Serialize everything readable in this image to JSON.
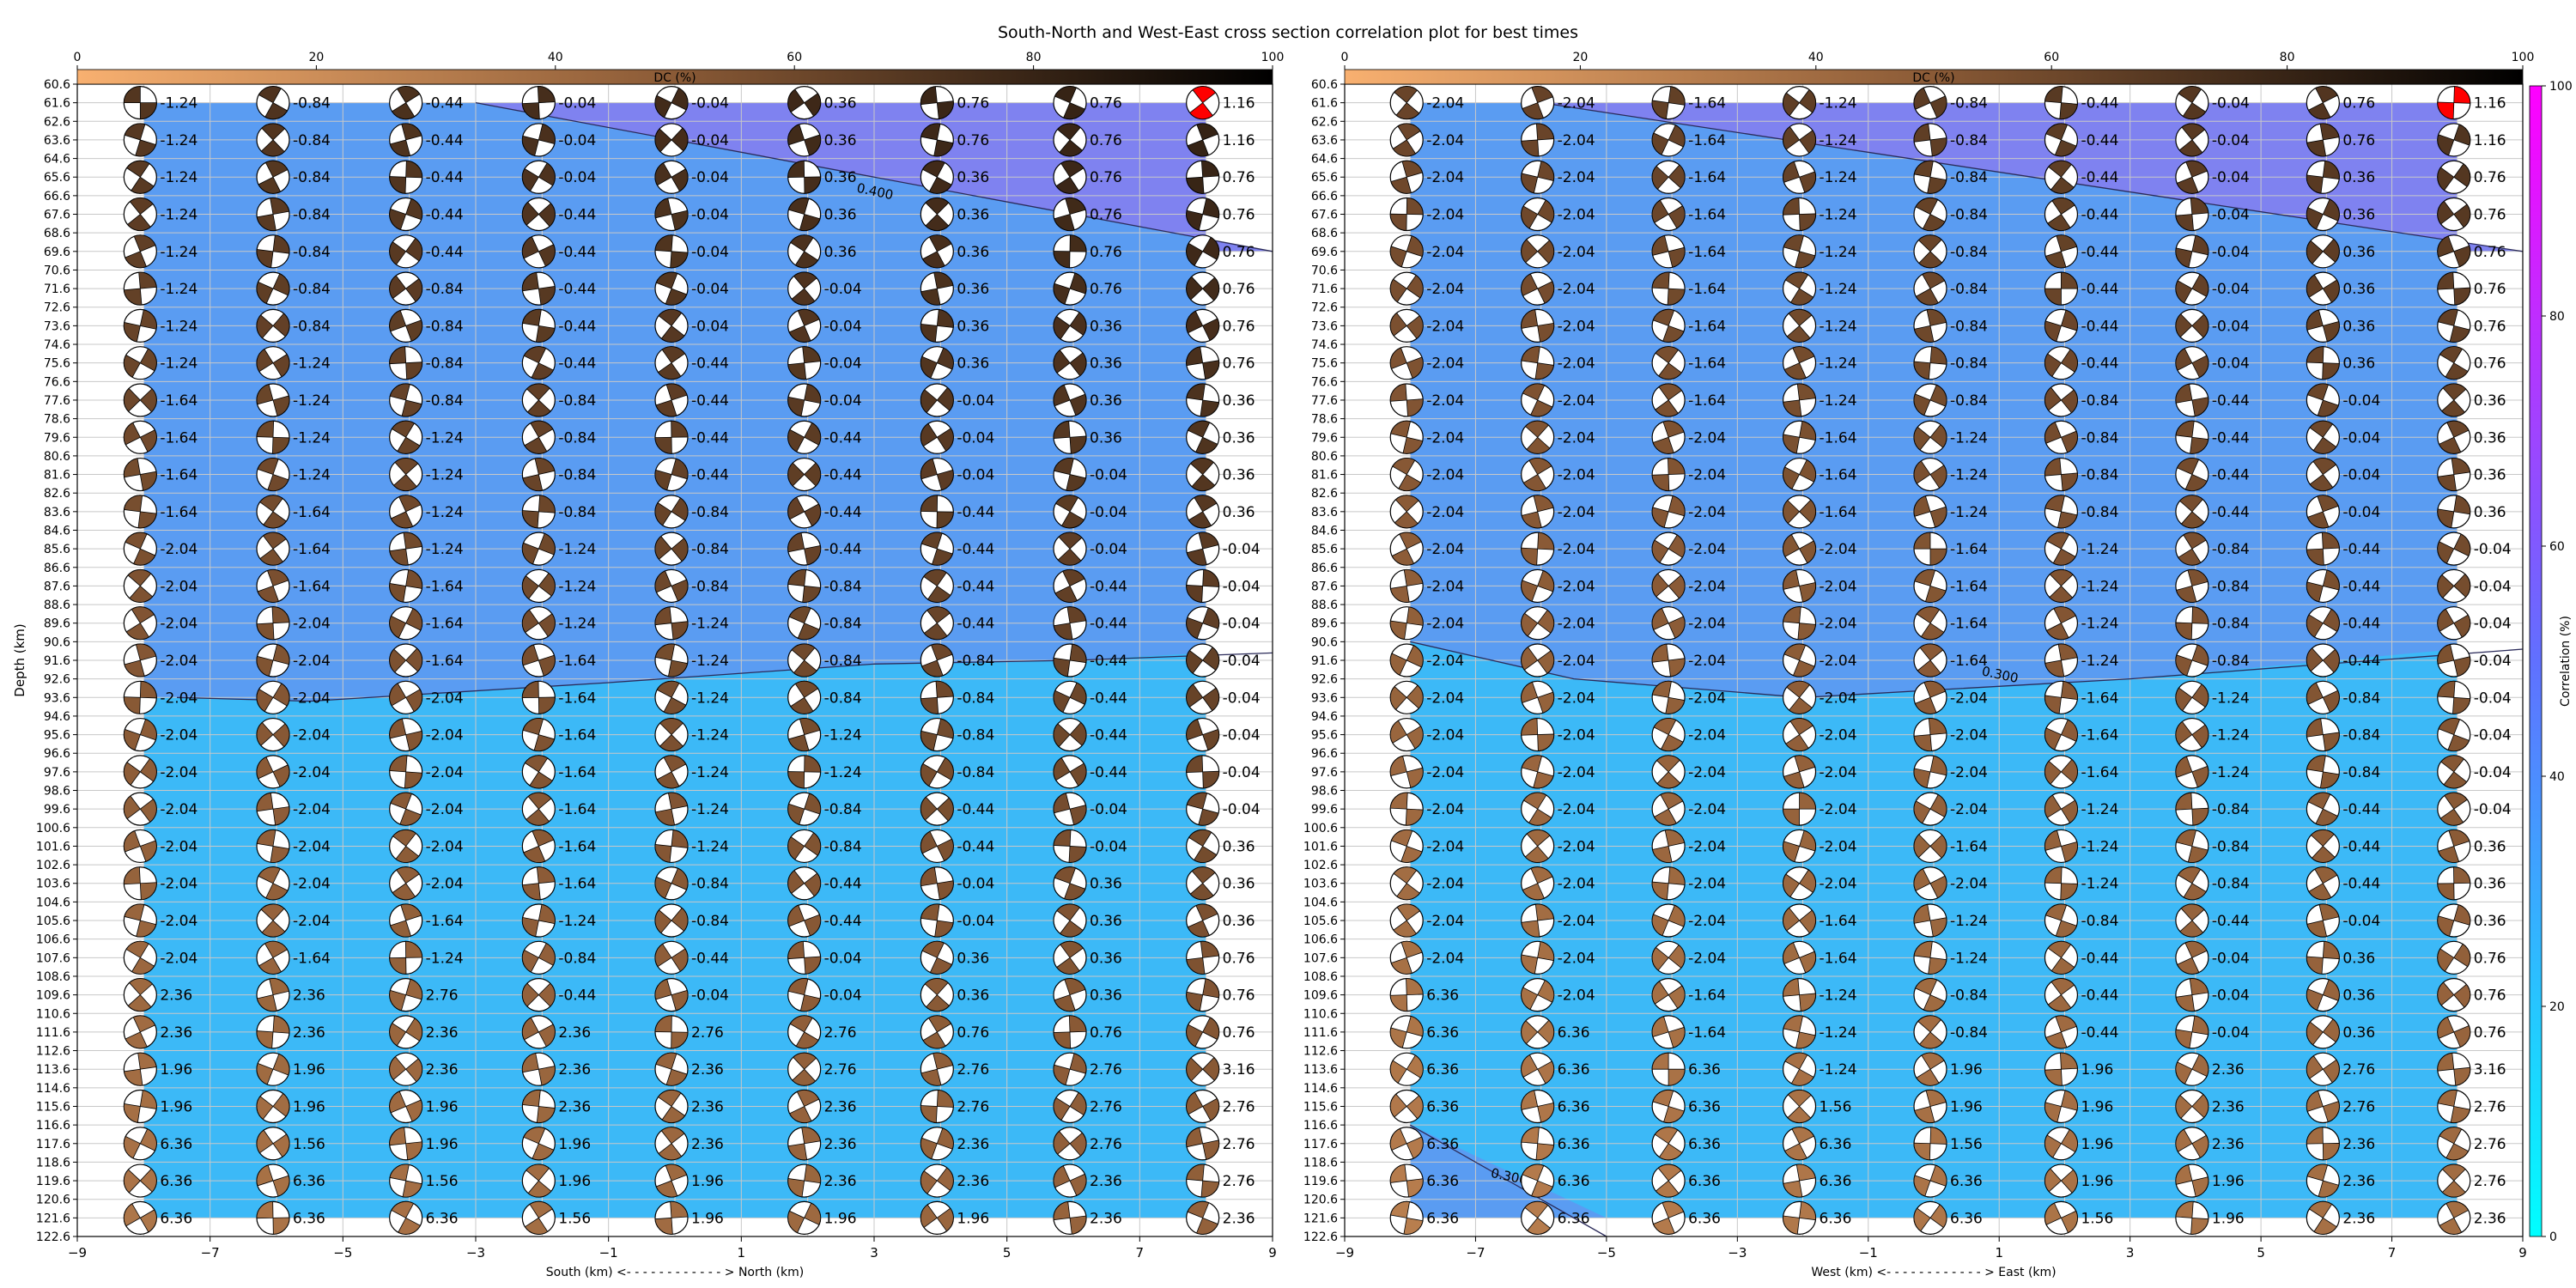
{
  "figure_title": "South-North and West-East cross section correlation plot for best times",
  "chart_data": [
    {
      "type": "heatmap",
      "name": "south-north",
      "xlabel": "South (km) <- - - - - - - - - - - - > North (km)",
      "ylabel": "Depth (km)",
      "xlim": [
        -9,
        9
      ],
      "ylim": [
        122.6,
        60.6
      ],
      "x_ticks": [
        -9,
        -7,
        -5,
        -3,
        -1,
        1,
        3,
        5,
        7,
        9
      ],
      "y_tick_step": 1,
      "columns_x": [
        -8,
        -6,
        -4,
        -2,
        0,
        2,
        4,
        6,
        8
      ],
      "rows_depth": [
        61.6,
        63.6,
        65.6,
        67.6,
        69.6,
        71.6,
        73.6,
        75.6,
        77.6,
        79.6,
        81.6,
        83.6,
        85.6,
        87.6,
        89.6,
        91.6,
        93.6,
        95.6,
        97.6,
        99.6,
        101.6,
        103.6,
        105.6,
        107.6,
        109.6,
        111.6,
        113.6,
        115.6,
        117.6,
        119.6,
        121.6
      ],
      "contours": [
        {
          "label": "0.400",
          "label_at": [
            3.0,
            66.6
          ],
          "points": [
            [
              -3,
              61.6
            ],
            [
              9,
              69.6
            ]
          ]
        },
        {
          "label": "",
          "label_at": null,
          "points": [
            [
              -7.5,
              93.6
            ],
            [
              -5.5,
              93.8
            ],
            [
              -1,
              92.8
            ],
            [
              3,
              91.8
            ],
            [
              6,
              91.6
            ],
            [
              9,
              91.2
            ]
          ]
        }
      ],
      "values": [
        [
          "-1.24",
          "-0.84",
          "-0.44",
          "-0.04",
          "-0.04",
          "0.36",
          "0.76",
          "0.76",
          "1.16"
        ],
        [
          "-1.24",
          "-0.84",
          "-0.44",
          "-0.04",
          "-0.04",
          "0.36",
          "0.76",
          "0.76",
          "1.16"
        ],
        [
          "-1.24",
          "-0.84",
          "-0.44",
          "-0.04",
          "-0.04",
          "0.36",
          "0.36",
          "0.76",
          "0.76"
        ],
        [
          "-1.24",
          "-0.84",
          "-0.44",
          "-0.44",
          "-0.04",
          "0.36",
          "0.36",
          "0.76",
          "0.76"
        ],
        [
          "-1.24",
          "-0.84",
          "-0.44",
          "-0.44",
          "-0.04",
          "0.36",
          "0.36",
          "0.76",
          "0.76"
        ],
        [
          "-1.24",
          "-0.84",
          "-0.84",
          "-0.44",
          "-0.04",
          "-0.04",
          "0.36",
          "0.76",
          "0.76"
        ],
        [
          "-1.24",
          "-0.84",
          "-0.84",
          "-0.44",
          "-0.04",
          "-0.04",
          "0.36",
          "0.36",
          "0.76"
        ],
        [
          "-1.24",
          "-1.24",
          "-0.84",
          "-0.44",
          "-0.44",
          "-0.04",
          "0.36",
          "0.36",
          "0.76"
        ],
        [
          "-1.64",
          "-1.24",
          "-0.84",
          "-0.84",
          "-0.44",
          "-0.04",
          "-0.04",
          "0.36",
          "0.36"
        ],
        [
          "-1.64",
          "-1.24",
          "-1.24",
          "-0.84",
          "-0.44",
          "-0.44",
          "-0.04",
          "0.36",
          "0.36"
        ],
        [
          "-1.64",
          "-1.24",
          "-1.24",
          "-0.84",
          "-0.44",
          "-0.44",
          "-0.04",
          "-0.04",
          "0.36"
        ],
        [
          "-1.64",
          "-1.64",
          "-1.24",
          "-0.84",
          "-0.84",
          "-0.44",
          "-0.44",
          "-0.04",
          "0.36"
        ],
        [
          "-2.04",
          "-1.64",
          "-1.24",
          "-1.24",
          "-0.84",
          "-0.44",
          "-0.44",
          "-0.04",
          "-0.04"
        ],
        [
          "-2.04",
          "-1.64",
          "-1.64",
          "-1.24",
          "-0.84",
          "-0.84",
          "-0.44",
          "-0.44",
          "-0.04"
        ],
        [
          "-2.04",
          "-2.04",
          "-1.64",
          "-1.24",
          "-1.24",
          "-0.84",
          "-0.44",
          "-0.44",
          "-0.04"
        ],
        [
          "-2.04",
          "-2.04",
          "-1.64",
          "-1.64",
          "-1.24",
          "-0.84",
          "-0.84",
          "-0.44",
          "-0.04"
        ],
        [
          "-2.04",
          "-2.04",
          "-2.04",
          "-1.64",
          "-1.24",
          "-0.84",
          "-0.84",
          "-0.44",
          "-0.04"
        ],
        [
          "-2.04",
          "-2.04",
          "-2.04",
          "-1.64",
          "-1.24",
          "-1.24",
          "-0.84",
          "-0.44",
          "-0.04"
        ],
        [
          "-2.04",
          "-2.04",
          "-2.04",
          "-1.64",
          "-1.24",
          "-1.24",
          "-0.84",
          "-0.44",
          "-0.04"
        ],
        [
          "-2.04",
          "-2.04",
          "-2.04",
          "-1.64",
          "-1.24",
          "-0.84",
          "-0.44",
          "-0.04",
          "-0.04"
        ],
        [
          "-2.04",
          "-2.04",
          "-2.04",
          "-1.64",
          "-1.24",
          "-0.84",
          "-0.44",
          "-0.04",
          "0.36"
        ],
        [
          "-2.04",
          "-2.04",
          "-2.04",
          "-1.64",
          "-0.84",
          "-0.44",
          "-0.04",
          "0.36",
          "0.36"
        ],
        [
          "-2.04",
          "-2.04",
          "-1.64",
          "-1.24",
          "-0.84",
          "-0.44",
          "-0.04",
          "0.36",
          "0.36"
        ],
        [
          "-2.04",
          "-1.64",
          "-1.24",
          "-0.84",
          "-0.44",
          "-0.04",
          "0.36",
          "0.36",
          "0.76"
        ],
        [
          "2.36",
          "2.36",
          "2.76",
          "-0.44",
          "-0.04",
          "-0.04",
          "0.36",
          "0.36",
          "0.76"
        ],
        [
          "2.36",
          "2.36",
          "2.36",
          "2.36",
          "2.76",
          "2.76",
          "0.76",
          "0.76",
          "0.76"
        ],
        [
          "1.96",
          "1.96",
          "2.36",
          "2.36",
          "2.36",
          "2.76",
          "2.76",
          "2.76",
          "3.16"
        ],
        [
          "1.96",
          "1.96",
          "1.96",
          "2.36",
          "2.36",
          "2.36",
          "2.76",
          "2.76",
          "2.76"
        ],
        [
          "6.36",
          "1.56",
          "1.96",
          "1.96",
          "2.36",
          "2.36",
          "2.36",
          "2.76",
          "2.76"
        ],
        [
          "6.36",
          "6.36",
          "1.56",
          "1.96",
          "1.96",
          "2.36",
          "2.36",
          "2.36",
          "2.76"
        ],
        [
          "6.36",
          "6.36",
          "6.36",
          "1.56",
          "1.96",
          "1.96",
          "1.96",
          "2.36",
          "2.36"
        ]
      ],
      "dc_colorbar": {
        "label": "DC (%)",
        "range": [
          0,
          100
        ],
        "ticks": [
          0,
          20,
          40,
          60,
          80,
          100
        ]
      }
    },
    {
      "type": "heatmap",
      "name": "west-east",
      "xlabel": "West (km) <- - - - - - - - - - - - > East (km)",
      "ylabel": "",
      "xlim": [
        -9,
        9
      ],
      "ylim": [
        122.6,
        60.6
      ],
      "x_ticks": [
        -9,
        -7,
        -5,
        -3,
        -1,
        1,
        3,
        5,
        7,
        9
      ],
      "y_tick_step": 1,
      "columns_x": [
        -8,
        -6,
        -4,
        -2,
        0,
        2,
        4,
        6,
        8
      ],
      "rows_depth": [
        61.6,
        63.6,
        65.6,
        67.6,
        69.6,
        71.6,
        73.6,
        75.6,
        77.6,
        79.6,
        81.6,
        83.6,
        85.6,
        87.6,
        89.6,
        91.6,
        93.6,
        95.6,
        97.6,
        99.6,
        101.6,
        103.6,
        105.6,
        107.6,
        109.6,
        111.6,
        113.6,
        115.6,
        117.6,
        119.6,
        121.6
      ],
      "contours": [
        {
          "label": "",
          "label_at": null,
          "points": [
            [
              -6,
              61.6
            ],
            [
              9,
              69.6
            ]
          ]
        },
        {
          "label": "0.300",
          "label_at": [
            1.0,
            92.6
          ],
          "points": [
            [
              -8,
              90.6
            ],
            [
              -5.5,
              92.6
            ],
            [
              -2,
              93.6
            ],
            [
              3,
              92.6
            ],
            [
              9,
              91.0
            ]
          ]
        },
        {
          "label": "0.300",
          "label_at": [
            -6.5,
            119.6
          ],
          "points": [
            [
              -8,
              116.6
            ],
            [
              -5,
              122.6
            ]
          ]
        }
      ],
      "values": [
        [
          "-2.04",
          "-2.04",
          "-1.64",
          "-1.24",
          "-0.84",
          "-0.44",
          "-0.04",
          "0.76",
          "1.16"
        ],
        [
          "-2.04",
          "-2.04",
          "-1.64",
          "-1.24",
          "-0.84",
          "-0.44",
          "-0.04",
          "0.76",
          "1.16"
        ],
        [
          "-2.04",
          "-2.04",
          "-1.64",
          "-1.24",
          "-0.84",
          "-0.44",
          "-0.04",
          "0.36",
          "0.76"
        ],
        [
          "-2.04",
          "-2.04",
          "-1.64",
          "-1.24",
          "-0.84",
          "-0.44",
          "-0.04",
          "0.36",
          "0.76"
        ],
        [
          "-2.04",
          "-2.04",
          "-1.64",
          "-1.24",
          "-0.84",
          "-0.44",
          "-0.04",
          "0.36",
          "0.76"
        ],
        [
          "-2.04",
          "-2.04",
          "-1.64",
          "-1.24",
          "-0.84",
          "-0.44",
          "-0.04",
          "0.36",
          "0.76"
        ],
        [
          "-2.04",
          "-2.04",
          "-1.64",
          "-1.24",
          "-0.84",
          "-0.44",
          "-0.04",
          "0.36",
          "0.76"
        ],
        [
          "-2.04",
          "-2.04",
          "-1.64",
          "-1.24",
          "-0.84",
          "-0.44",
          "-0.04",
          "0.36",
          "0.76"
        ],
        [
          "-2.04",
          "-2.04",
          "-1.64",
          "-1.24",
          "-0.84",
          "-0.84",
          "-0.44",
          "-0.04",
          "0.36"
        ],
        [
          "-2.04",
          "-2.04",
          "-2.04",
          "-1.64",
          "-1.24",
          "-0.84",
          "-0.44",
          "-0.04",
          "0.36"
        ],
        [
          "-2.04",
          "-2.04",
          "-2.04",
          "-1.64",
          "-1.24",
          "-0.84",
          "-0.44",
          "-0.04",
          "0.36"
        ],
        [
          "-2.04",
          "-2.04",
          "-2.04",
          "-1.64",
          "-1.24",
          "-0.84",
          "-0.44",
          "-0.04",
          "0.36"
        ],
        [
          "-2.04",
          "-2.04",
          "-2.04",
          "-2.04",
          "-1.64",
          "-1.24",
          "-0.84",
          "-0.44",
          "-0.04"
        ],
        [
          "-2.04",
          "-2.04",
          "-2.04",
          "-2.04",
          "-1.64",
          "-1.24",
          "-0.84",
          "-0.44",
          "-0.04"
        ],
        [
          "-2.04",
          "-2.04",
          "-2.04",
          "-2.04",
          "-1.64",
          "-1.24",
          "-0.84",
          "-0.44",
          "-0.04"
        ],
        [
          "-2.04",
          "-2.04",
          "-2.04",
          "-2.04",
          "-1.64",
          "-1.24",
          "-0.84",
          "-0.44",
          "-0.04"
        ],
        [
          "-2.04",
          "-2.04",
          "-2.04",
          "-2.04",
          "-2.04",
          "-1.64",
          "-1.24",
          "-0.84",
          "-0.04"
        ],
        [
          "-2.04",
          "-2.04",
          "-2.04",
          "-2.04",
          "-2.04",
          "-1.64",
          "-1.24",
          "-0.84",
          "-0.04"
        ],
        [
          "-2.04",
          "-2.04",
          "-2.04",
          "-2.04",
          "-2.04",
          "-1.64",
          "-1.24",
          "-0.84",
          "-0.04"
        ],
        [
          "-2.04",
          "-2.04",
          "-2.04",
          "-2.04",
          "-2.04",
          "-1.24",
          "-0.84",
          "-0.44",
          "-0.04"
        ],
        [
          "-2.04",
          "-2.04",
          "-2.04",
          "-2.04",
          "-1.64",
          "-1.24",
          "-0.84",
          "-0.44",
          "0.36"
        ],
        [
          "-2.04",
          "-2.04",
          "-2.04",
          "-2.04",
          "-2.04",
          "-1.24",
          "-0.84",
          "-0.44",
          "0.36"
        ],
        [
          "-2.04",
          "-2.04",
          "-2.04",
          "-1.64",
          "-1.24",
          "-0.84",
          "-0.44",
          "-0.04",
          "0.36"
        ],
        [
          "-2.04",
          "-2.04",
          "-2.04",
          "-1.64",
          "-1.24",
          "-0.44",
          "-0.04",
          "0.36",
          "0.76"
        ],
        [
          "6.36",
          "-2.04",
          "-1.64",
          "-1.24",
          "-0.84",
          "-0.44",
          "-0.04",
          "0.36",
          "0.76"
        ],
        [
          "6.36",
          "6.36",
          "-1.64",
          "-1.24",
          "-0.84",
          "-0.44",
          "-0.04",
          "0.36",
          "0.76"
        ],
        [
          "6.36",
          "6.36",
          "6.36",
          "-1.24",
          "1.96",
          "1.96",
          "2.36",
          "2.76",
          "3.16"
        ],
        [
          "6.36",
          "6.36",
          "6.36",
          "1.56",
          "1.96",
          "1.96",
          "2.36",
          "2.76",
          "2.76"
        ],
        [
          "6.36",
          "6.36",
          "6.36",
          "6.36",
          "1.56",
          "1.96",
          "2.36",
          "2.36",
          "2.76"
        ],
        [
          "6.36",
          "6.36",
          "6.36",
          "6.36",
          "6.36",
          "1.96",
          "1.96",
          "2.36",
          "2.76"
        ],
        [
          "6.36",
          "6.36",
          "6.36",
          "6.36",
          "6.36",
          "1.56",
          "1.96",
          "2.36",
          "2.36"
        ]
      ],
      "dc_colorbar": {
        "label": "DC (%)",
        "range": [
          0,
          100
        ],
        "ticks": [
          0,
          20,
          40,
          60,
          80,
          100
        ]
      }
    }
  ],
  "correlation_colorbar": {
    "label": "Correlation (%)",
    "range": [
      0,
      100
    ],
    "ticks": [
      0,
      20,
      40,
      60,
      80,
      100
    ]
  },
  "colors": {
    "dc_low": "#f8b070",
    "dc_mid": "#8a5a36",
    "dc_high": "#000000",
    "corr_low": "#00ffff",
    "corr_mid": "#6070ff",
    "corr_high": "#ff00ff",
    "fill_deep": "#3cb9f7",
    "fill_mid": "#5a9cf2",
    "fill_top": "#7f82f0",
    "grid": "#c8c8c8",
    "beachball_highlight": "#ff0000"
  }
}
